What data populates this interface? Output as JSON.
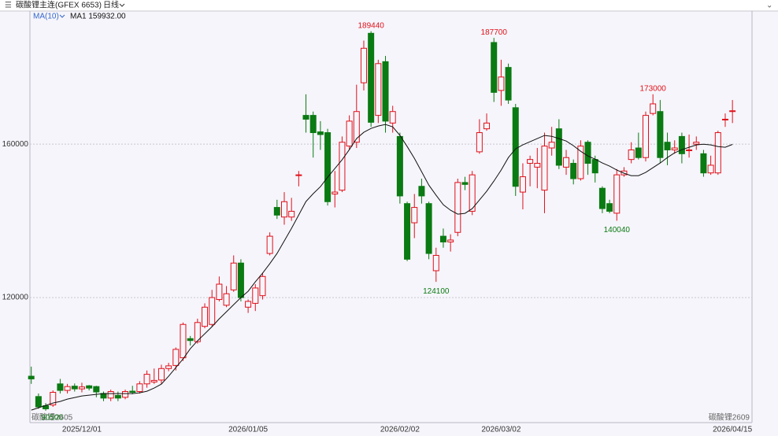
{
  "chart_data": {
    "type": "candlestick",
    "title": "碳酸锂主连(GFEX 6653)",
    "period": "日线",
    "indicator": "MA(10)",
    "ma_label": "MA1 159932.00",
    "contract_labels": [
      "碳酸锂2605",
      "碳酸锂2609"
    ],
    "up_color": "#e0101a",
    "down_color": "#0a7a12",
    "categories": [
      null,
      null,
      null,
      null,
      null,
      null,
      null,
      "2025/12/01",
      null,
      null,
      null,
      null,
      null,
      null,
      null,
      null,
      null,
      null,
      null,
      null,
      null,
      null,
      null,
      null,
      null,
      null,
      null,
      null,
      null,
      null,
      "2026/01/05",
      null,
      null,
      null,
      null,
      null,
      null,
      null,
      null,
      null,
      null,
      null,
      null,
      null,
      null,
      null,
      null,
      null,
      null,
      null,
      null,
      "2026/02/02",
      null,
      null,
      null,
      null,
      null,
      null,
      null,
      null,
      null,
      null,
      null,
      null,
      null,
      "2026/03/02",
      null,
      null,
      null,
      null,
      null,
      null,
      null,
      null,
      null,
      null,
      null,
      null,
      null,
      null,
      null,
      null,
      null,
      null,
      null,
      null,
      null,
      null,
      null,
      null,
      null,
      null,
      null,
      null,
      null,
      null,
      null,
      "2026/04/15"
    ],
    "open": [
      99500,
      94200,
      91800,
      92000,
      97500,
      95800,
      96900,
      96200,
      97000,
      96800,
      95000,
      93800,
      94500,
      94000,
      95600,
      95500,
      97500,
      98000,
      98500,
      101500,
      102300,
      104300,
      109300,
      108500,
      112500,
      113000,
      119500,
      118000,
      122000,
      129000,
      117500,
      118500,
      120500,
      131500,
      143500,
      141000,
      141000,
      152000,
      167500,
      167500,
      163200,
      163000,
      147000,
      148000,
      159500,
      160500,
      176000,
      188900,
      167500,
      181500,
      165500,
      162000,
      144500,
      139500,
      149000,
      144500,
      127000,
      136000,
      134500,
      137000,
      150000,
      142500,
      158000,
      164000,
      186500,
      174000,
      180000,
      169500,
      147500,
      155000,
      154000,
      148000,
      159000,
      164000,
      154000,
      155000,
      151000,
      160500,
      156000,
      148500,
      144500,
      142000,
      152000,
      156000,
      159000,
      156500,
      168000,
      168500,
      160500,
      158500,
      162000,
      158500,
      160000,
      157500,
      152500,
      152500,
      166500,
      168500
    ],
    "high": [
      102000,
      95000,
      92500,
      95800,
      98800,
      97500,
      97600,
      97800,
      97200,
      97000,
      95500,
      96000,
      95500,
      96000,
      97000,
      98200,
      101000,
      101500,
      102500,
      103000,
      107000,
      113500,
      110000,
      114500,
      118500,
      122000,
      125500,
      123000,
      131000,
      130000,
      119500,
      123500,
      126500,
      137000,
      145500,
      147500,
      146000,
      153000,
      173000,
      168500,
      166000,
      164000,
      153000,
      162000,
      167500,
      175500,
      187000,
      189440,
      182000,
      183000,
      170000,
      163000,
      145000,
      147000,
      151000,
      145000,
      133000,
      138000,
      136500,
      151000,
      151500,
      153000,
      166500,
      168000,
      187700,
      182000,
      181000,
      170500,
      155000,
      157000,
      159000,
      163000,
      164500,
      166500,
      158500,
      156000,
      161000,
      161000,
      157000,
      149000,
      145500,
      153500,
      154000,
      160500,
      163000,
      168500,
      173000,
      171500,
      163000,
      161000,
      163000,
      162500,
      162000,
      158500,
      157000,
      163500,
      168000,
      171500
    ],
    "low": [
      97500,
      91000,
      90500,
      91500,
      95000,
      95000,
      95500,
      95300,
      95800,
      94000,
      93000,
      93000,
      93000,
      93500,
      94800,
      95000,
      96500,
      97500,
      97500,
      100800,
      101000,
      103500,
      107500,
      108000,
      112000,
      112500,
      119000,
      117500,
      121500,
      119000,
      116000,
      116500,
      119500,
      131000,
      140500,
      139000,
      140000,
      149000,
      163000,
      156500,
      158500,
      144000,
      143500,
      147500,
      158500,
      159000,
      174000,
      164500,
      165500,
      163000,
      163000,
      144500,
      129500,
      135500,
      144500,
      130000,
      124100,
      133000,
      132000,
      136000,
      148000,
      141500,
      157500,
      163500,
      171000,
      170000,
      170500,
      146500,
      143000,
      149000,
      148500,
      142000,
      157000,
      153500,
      152000,
      149500,
      150500,
      152000,
      150000,
      142000,
      142000,
      140040,
      151500,
      155000,
      156000,
      155500,
      167500,
      155000,
      154500,
      157500,
      155000,
      156500,
      158500,
      151500,
      152000,
      152000,
      164500,
      165500
    ],
    "close": [
      98800,
      91500,
      91000,
      95300,
      95800,
      96800,
      96200,
      96700,
      96400,
      95400,
      93800,
      95500,
      93800,
      95500,
      95300,
      97500,
      100000,
      98400,
      101500,
      102200,
      106500,
      113000,
      108800,
      113500,
      117500,
      120000,
      123500,
      121000,
      129000,
      120000,
      119000,
      122500,
      125500,
      136000,
      141500,
      145000,
      142500,
      152000,
      166500,
      163000,
      162500,
      145000,
      147500,
      160500,
      166000,
      168500,
      185000,
      165700,
      181000,
      166000,
      168500,
      146500,
      130000,
      143500,
      146500,
      131500,
      131000,
      134500,
      135000,
      150000,
      149500,
      152000,
      163000,
      165500,
      173500,
      177500,
      171500,
      149000,
      151500,
      156000,
      155000,
      159500,
      160500,
      154500,
      156500,
      151000,
      159500,
      155000,
      152500,
      143200,
      142500,
      152000,
      153000,
      158500,
      156500,
      167500,
      170500,
      156500,
      158500,
      159000,
      157500,
      158500,
      160500,
      152500,
      154500,
      163000,
      166500,
      168700
    ],
    "series": [
      {
        "name": "MA1",
        "color": "#111111",
        "values": [
          90670,
          91280,
          91900,
          92510,
          92920,
          93540,
          93950,
          94360,
          94560,
          94770,
          94970,
          94970,
          94970,
          94970,
          94970,
          95180,
          95590,
          96410,
          97440,
          99490,
          101740,
          104000,
          106670,
          108720,
          110560,
          112410,
          114460,
          116310,
          118150,
          120000,
          121640,
          124100,
          126360,
          128820,
          131490,
          134770,
          138050,
          141540,
          145030,
          147080,
          148920,
          151380,
          153640,
          155900,
          158560,
          161440,
          163080,
          164100,
          164720,
          165130,
          164510,
          162260,
          159380,
          156310,
          152820,
          149330,
          146670,
          144200,
          142770,
          141740,
          141950,
          143180,
          145440,
          147690,
          150360,
          153230,
          156510,
          158770,
          159800,
          160620,
          161440,
          162260,
          162050,
          161440,
          160820,
          159590,
          158150,
          156920,
          156100,
          155080,
          154260,
          153230,
          152410,
          151790,
          151790,
          152620,
          153850,
          155080,
          156510,
          157740,
          158560,
          159180,
          159800,
          160000,
          159800,
          159380,
          159180,
          159932
        ]
      }
    ],
    "marks": {
      "high": [
        47,
        64,
        86
      ],
      "low": [
        2,
        56,
        81
      ]
    },
    "ylim": [
      87400,
      194500
    ],
    "yticks": [
      120000,
      160000
    ],
    "grid": true
  }
}
